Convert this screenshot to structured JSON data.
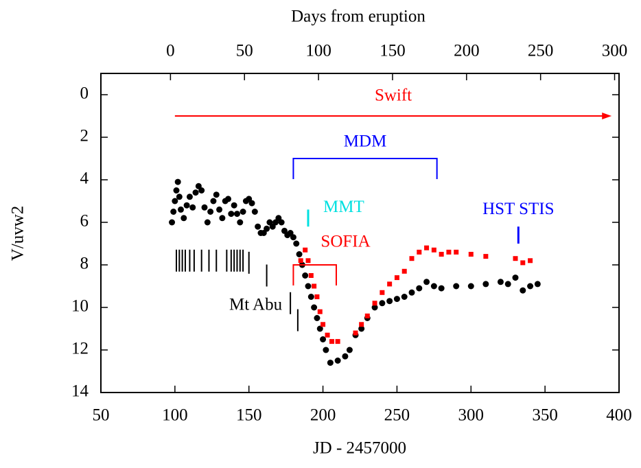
{
  "chart_data": {
    "type": "scatter",
    "xlabel": "JD - 2457000",
    "ylabel": "V/uvw2",
    "x2label": "Days from eruption",
    "xlim": [
      50,
      400
    ],
    "xticks": [
      50,
      100,
      150,
      200,
      250,
      300,
      350,
      400
    ],
    "x2lim": [
      -47,
      303
    ],
    "x2ticks": [
      0,
      50,
      100,
      150,
      200,
      250,
      300
    ],
    "ylim": [
      14,
      -1
    ],
    "yticks": [
      0,
      2,
      4,
      6,
      8,
      10,
      12,
      14
    ],
    "series": [
      {
        "color": "#000000",
        "marker": "circle",
        "x": [
          98,
          99,
          100,
          101,
          102,
          103,
          104,
          106,
          108,
          110,
          112,
          114,
          116,
          118,
          120,
          122,
          124,
          126,
          128,
          130,
          132,
          134,
          136,
          138,
          140,
          142,
          144,
          146,
          148,
          150,
          152,
          154,
          156,
          158,
          160,
          162,
          164,
          166,
          168,
          170,
          172,
          174,
          176,
          178,
          180,
          182,
          184,
          186,
          188,
          190,
          192,
          194,
          196,
          198,
          200,
          202,
          205,
          210,
          215,
          218,
          222,
          226,
          230,
          235,
          240,
          245,
          250,
          255,
          260,
          265,
          270,
          275,
          280,
          290,
          300,
          310,
          320,
          325,
          330,
          335,
          340,
          345
        ],
        "values": [
          6.0,
          5.5,
          5.0,
          4.5,
          4.1,
          4.8,
          5.4,
          5.8,
          5.2,
          4.8,
          5.3,
          4.6,
          4.3,
          4.5,
          5.3,
          6.0,
          5.5,
          5.0,
          4.7,
          5.4,
          5.8,
          5.0,
          4.9,
          5.6,
          5.2,
          5.6,
          6.0,
          5.5,
          5.0,
          4.9,
          5.1,
          5.5,
          6.2,
          6.5,
          6.5,
          6.3,
          6.0,
          6.2,
          6.0,
          5.8,
          6.0,
          6.4,
          6.6,
          6.5,
          6.7,
          7.0,
          7.5,
          8.0,
          8.5,
          9.0,
          9.5,
          10.0,
          10.5,
          11.0,
          11.5,
          12.0,
          12.6,
          12.5,
          12.3,
          12.0,
          11.3,
          11.0,
          10.5,
          10.0,
          9.8,
          9.7,
          9.6,
          9.5,
          9.3,
          9.1,
          8.8,
          9.0,
          9.1,
          9.0,
          9.0,
          8.9,
          8.8,
          8.9,
          8.6,
          9.2,
          9.0,
          8.9
        ]
      },
      {
        "color": "#ff0000",
        "marker": "square",
        "x": [
          185,
          188,
          190,
          192,
          194,
          196,
          198,
          200,
          203,
          206,
          210,
          222,
          226,
          230,
          235,
          240,
          245,
          250,
          255,
          260,
          265,
          270,
          275,
          280,
          285,
          290,
          300,
          310,
          330,
          335,
          340
        ],
        "values": [
          7.8,
          7.3,
          7.8,
          8.5,
          9.0,
          9.5,
          10.2,
          10.8,
          11.3,
          11.6,
          11.6,
          11.2,
          10.8,
          10.4,
          9.8,
          9.3,
          8.9,
          8.6,
          8.3,
          7.7,
          7.4,
          7.2,
          7.3,
          7.5,
          7.4,
          7.4,
          7.5,
          7.6,
          7.7,
          7.9,
          7.8
        ]
      }
    ],
    "annotations": [
      {
        "text": "Swift",
        "color": "#ff0000",
        "kind": "arrow",
        "x": [
          100,
          395
        ],
        "y": 1
      },
      {
        "text": "MDM",
        "color": "#0000ff",
        "kind": "bracket",
        "x": [
          180,
          277
        ],
        "y": 3
      },
      {
        "text": "MMT",
        "color": "#00e0e0",
        "kind": "tick",
        "x": 190,
        "y": [
          5.4,
          6.2
        ]
      },
      {
        "text": "SOFIA",
        "color": "#ff0000",
        "kind": "bracket",
        "x": [
          180,
          209
        ],
        "y": 8
      },
      {
        "text": "HST STIS",
        "color": "#0000ff",
        "kind": "tick",
        "x": 332,
        "y": [
          6.2,
          7.0
        ]
      },
      {
        "text": "Mt Abu",
        "color": "#000000",
        "kind": "ticks",
        "x": [
          101,
          103,
          105,
          107,
          110,
          113,
          118,
          123,
          128,
          135,
          138,
          140,
          142,
          144,
          146,
          150,
          162,
          178,
          183
        ],
        "y": [
          7.8,
          7.8,
          7.8,
          7.8,
          7.8,
          7.8,
          7.8,
          7.8,
          7.8,
          7.8,
          7.8,
          7.8,
          7.8,
          7.8,
          7.8,
          7.9,
          8.5,
          9.8,
          10.6
        ]
      }
    ]
  }
}
